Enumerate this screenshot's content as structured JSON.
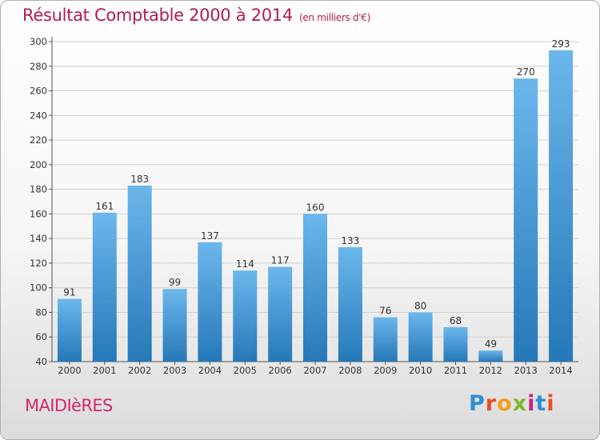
{
  "title": "Résultat Comptable 2000 à 2014",
  "unit_note": "(en milliers d'€)",
  "place": "MAIDIèRES",
  "logo": "Proxiti",
  "colors": {
    "bar_top": "#6cb7ec",
    "bar_bottom": "#2578b8",
    "title": "#b11c4e",
    "place": "#d6286a"
  },
  "chart_data": {
    "type": "bar",
    "title": "Résultat Comptable 2000 à 2014",
    "subtitle": "(en milliers d'€)",
    "categories": [
      "2000",
      "2001",
      "2002",
      "2003",
      "2004",
      "2005",
      "2006",
      "2007",
      "2008",
      "2009",
      "2010",
      "2011",
      "2012",
      "2013",
      "2014"
    ],
    "values": [
      91,
      161,
      183,
      99,
      137,
      114,
      117,
      160,
      133,
      76,
      80,
      68,
      49,
      270,
      293
    ],
    "ylim": [
      40,
      300
    ],
    "yticks": [
      40,
      60,
      80,
      100,
      120,
      140,
      160,
      180,
      200,
      220,
      240,
      260,
      280,
      300
    ],
    "grid": true,
    "data_labels": true
  }
}
